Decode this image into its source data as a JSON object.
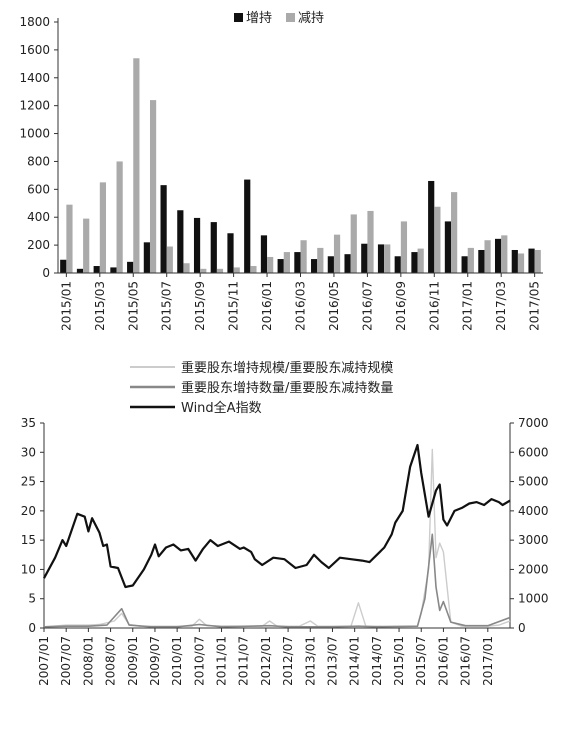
{
  "chart_data": [
    {
      "type": "bar",
      "legend_position": "top-center",
      "grid": false,
      "ylim": [
        0,
        1800
      ],
      "yticks": [
        0,
        200,
        400,
        600,
        800,
        1000,
        1200,
        1400,
        1600,
        1800
      ],
      "categories": [
        "2015/01",
        "2015/02",
        "2015/03",
        "2015/04",
        "2015/05",
        "2015/06",
        "2015/07",
        "2015/08",
        "2015/09",
        "2015/10",
        "2015/11",
        "2015/12",
        "2016/01",
        "2016/02",
        "2016/03",
        "2016/04",
        "2016/05",
        "2016/06",
        "2016/07",
        "2016/08",
        "2016/09",
        "2016/10",
        "2016/11",
        "2016/12",
        "2017/01",
        "2017/02",
        "2017/03",
        "2017/04",
        "2017/05"
      ],
      "xtick_labels": [
        "2015/01",
        "2015/03",
        "2015/05",
        "2015/07",
        "2015/09",
        "2015/11",
        "2016/01",
        "2016/03",
        "2016/05",
        "2016/07",
        "2016/09",
        "2016/11",
        "2017/01",
        "2017/03",
        "2017/05"
      ],
      "series": [
        {
          "name": "增持",
          "color": "#111111",
          "values": [
            95,
            30,
            50,
            40,
            80,
            220,
            630,
            450,
            395,
            365,
            285,
            670,
            270,
            100,
            150,
            100,
            120,
            135,
            210,
            205,
            120,
            150,
            660,
            370,
            120,
            165,
            245,
            165,
            175
          ]
        },
        {
          "name": "减持",
          "color": "#aaaaaa",
          "values": [
            490,
            390,
            650,
            800,
            1540,
            1240,
            190,
            70,
            30,
            30,
            40,
            50,
            115,
            150,
            235,
            180,
            275,
            420,
            445,
            205,
            370,
            175,
            475,
            580,
            180,
            235,
            270,
            140,
            165
          ]
        }
      ]
    },
    {
      "type": "line",
      "legend_position": "top-center",
      "grid": false,
      "ylim_left": [
        0,
        35
      ],
      "yticks_left": [
        0,
        5,
        10,
        15,
        20,
        25,
        30,
        35
      ],
      "ylim_right": [
        0,
        7000
      ],
      "yticks_right": [
        0,
        1000,
        2000,
        3000,
        4000,
        5000,
        6000,
        7000
      ],
      "xtick_labels": [
        "2007/01",
        "2007/07",
        "2008/01",
        "2008/07",
        "2009/01",
        "2009/07",
        "2010/01",
        "2010/07",
        "2011/01",
        "2011/07",
        "2012/01",
        "2012/07",
        "2013/01",
        "2013/07",
        "2014/01",
        "2014/07",
        "2015/01",
        "2015/07",
        "2016/01",
        "2016/07",
        "2017/01"
      ],
      "x_start": "2007/01",
      "x_end": "2017/07",
      "series": [
        {
          "name": "重要股东增持规模/重要股东减持规模",
          "axis": "left",
          "color": "#cccccc",
          "points": [
            [
              "2007/01",
              0.2
            ],
            [
              "2007/07",
              0.5
            ],
            [
              "2008/01",
              0.5
            ],
            [
              "2008/04",
              0.6
            ],
            [
              "2008/08",
              1.2
            ],
            [
              "2008/10",
              2.5
            ],
            [
              "2008/12",
              0.6
            ],
            [
              "2009/03",
              0.3
            ],
            [
              "2009/09",
              0.3
            ],
            [
              "2010/01",
              0.3
            ],
            [
              "2010/05",
              0.3
            ],
            [
              "2010/07",
              1.5
            ],
            [
              "2010/09",
              0.4
            ],
            [
              "2011/06",
              0.3
            ],
            [
              "2011/12",
              0.3
            ],
            [
              "2012/02",
              1.2
            ],
            [
              "2012/04",
              0.3
            ],
            [
              "2012/10",
              0.3
            ],
            [
              "2013/01",
              1.2
            ],
            [
              "2013/03",
              0.3
            ],
            [
              "2013/12",
              0.3
            ],
            [
              "2014/02",
              4.3
            ],
            [
              "2014/04",
              0.3
            ],
            [
              "2015/06",
              0.3
            ],
            [
              "2015/07",
              2.5
            ],
            [
              "2015/09",
              10
            ],
            [
              "2015/10",
              30.5
            ],
            [
              "2015/11",
              12
            ],
            [
              "2015/12",
              14.5
            ],
            [
              "2016/01",
              13
            ],
            [
              "2016/03",
              1
            ],
            [
              "2016/06",
              0.3
            ],
            [
              "2017/01",
              0.3
            ],
            [
              "2017/04",
              0.5
            ],
            [
              "2017/07",
              1.2
            ]
          ]
        },
        {
          "name": "重要股东增持数量/重要股东减持数量",
          "axis": "left",
          "color": "#888888",
          "points": [
            [
              "2007/01",
              0.2
            ],
            [
              "2007/07",
              0.3
            ],
            [
              "2008/01",
              0.3
            ],
            [
              "2008/06",
              0.5
            ],
            [
              "2008/10",
              3.3
            ],
            [
              "2008/12",
              0.5
            ],
            [
              "2009/06",
              0.2
            ],
            [
              "2010/01",
              0.2
            ],
            [
              "2010/07",
              0.6
            ],
            [
              "2011/01",
              0.2
            ],
            [
              "2012/02",
              0.4
            ],
            [
              "2012/07",
              0.2
            ],
            [
              "2013/07",
              0.2
            ],
            [
              "2014/02",
              0.3
            ],
            [
              "2014/07",
              0.2
            ],
            [
              "2015/06",
              0.3
            ],
            [
              "2015/08",
              5
            ],
            [
              "2015/10",
              16
            ],
            [
              "2015/11",
              7
            ],
            [
              "2015/12",
              3
            ],
            [
              "2016/01",
              4.5
            ],
            [
              "2016/03",
              1
            ],
            [
              "2016/07",
              0.4
            ],
            [
              "2017/01",
              0.4
            ],
            [
              "2017/07",
              1.8
            ]
          ]
        },
        {
          "name": "Wind全A指数",
          "axis": "right",
          "color": "#111111",
          "points": [
            [
              "2007/01",
              1700
            ],
            [
              "2007/04",
              2400
            ],
            [
              "2007/06",
              3000
            ],
            [
              "2007/07",
              2800
            ],
            [
              "2007/10",
              3900
            ],
            [
              "2007/12",
              3800
            ],
            [
              "2008/01",
              3300
            ],
            [
              "2008/02",
              3750
            ],
            [
              "2008/04",
              3250
            ],
            [
              "2008/05",
              2800
            ],
            [
              "2008/06",
              2850
            ],
            [
              "2008/07",
              2100
            ],
            [
              "2008/09",
              2050
            ],
            [
              "2008/11",
              1400
            ],
            [
              "2009/01",
              1450
            ],
            [
              "2009/04",
              2000
            ],
            [
              "2009/06",
              2500
            ],
            [
              "2009/07",
              2850
            ],
            [
              "2009/08",
              2450
            ],
            [
              "2009/10",
              2750
            ],
            [
              "2009/12",
              2850
            ],
            [
              "2010/02",
              2650
            ],
            [
              "2010/04",
              2700
            ],
            [
              "2010/06",
              2300
            ],
            [
              "2010/08",
              2700
            ],
            [
              "2010/10",
              3000
            ],
            [
              "2010/12",
              2800
            ],
            [
              "2011/03",
              2950
            ],
            [
              "2011/06",
              2700
            ],
            [
              "2011/07",
              2750
            ],
            [
              "2011/09",
              2600
            ],
            [
              "2011/10",
              2350
            ],
            [
              "2011/12",
              2150
            ],
            [
              "2012/03",
              2400
            ],
            [
              "2012/06",
              2350
            ],
            [
              "2012/09",
              2050
            ],
            [
              "2012/12",
              2150
            ],
            [
              "2013/02",
              2500
            ],
            [
              "2013/04",
              2250
            ],
            [
              "2013/06",
              2050
            ],
            [
              "2013/09",
              2400
            ],
            [
              "2013/12",
              2350
            ],
            [
              "2014/03",
              2300
            ],
            [
              "2014/05",
              2250
            ],
            [
              "2014/07",
              2500
            ],
            [
              "2014/09",
              2750
            ],
            [
              "2014/11",
              3200
            ],
            [
              "2014/12",
              3600
            ],
            [
              "2015/02",
              4000
            ],
            [
              "2015/04",
              5500
            ],
            [
              "2015/06",
              6250
            ],
            [
              "2015/07",
              5300
            ],
            [
              "2015/09",
              3800
            ],
            [
              "2015/11",
              4700
            ],
            [
              "2015/12",
              4900
            ],
            [
              "2016/01",
              3700
            ],
            [
              "2016/02",
              3500
            ],
            [
              "2016/04",
              4000
            ],
            [
              "2016/06",
              4100
            ],
            [
              "2016/08",
              4250
            ],
            [
              "2016/10",
              4300
            ],
            [
              "2016/12",
              4200
            ],
            [
              "2017/02",
              4400
            ],
            [
              "2017/04",
              4300
            ],
            [
              "2017/05",
              4200
            ],
            [
              "2017/07",
              4350
            ]
          ]
        }
      ]
    }
  ]
}
